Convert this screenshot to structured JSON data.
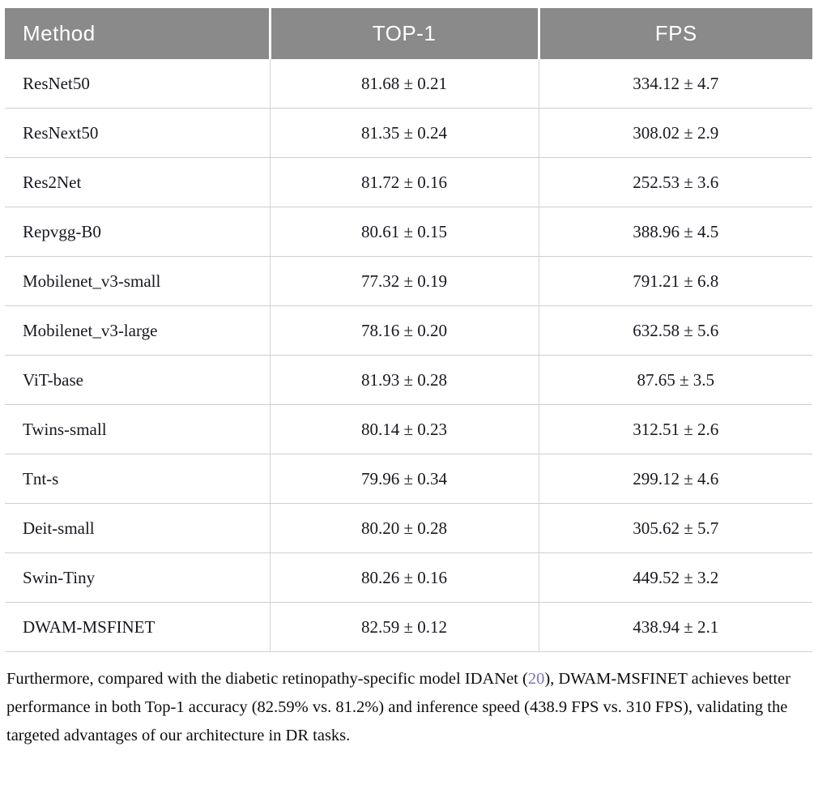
{
  "table": {
    "columns": [
      {
        "label": "Method",
        "align": "left"
      },
      {
        "label": "TOP-1",
        "align": "center"
      },
      {
        "label": "FPS",
        "align": "center"
      }
    ],
    "rows": [
      {
        "method": "ResNet50",
        "top1": "81.68 ± 0.21",
        "fps": "334.12 ± 4.7"
      },
      {
        "method": "ResNext50",
        "top1": "81.35 ± 0.24",
        "fps": "308.02 ± 2.9"
      },
      {
        "method": "Res2Net",
        "top1": "81.72 ± 0.16",
        "fps": "252.53 ± 3.6"
      },
      {
        "method": "Repvgg-B0",
        "top1": "80.61 ± 0.15",
        "fps": "388.96 ± 4.5"
      },
      {
        "method": "Mobilenet_v3-small",
        "top1": "77.32 ± 0.19",
        "fps": "791.21 ± 6.8"
      },
      {
        "method": "Mobilenet_v3-large",
        "top1": "78.16 ± 0.20",
        "fps": "632.58 ± 5.6"
      },
      {
        "method": "ViT-base",
        "top1": "81.93 ± 0.28",
        "fps": "87.65 ± 3.5"
      },
      {
        "method": "Twins-small",
        "top1": "80.14 ± 0.23",
        "fps": "312.51 ± 2.6"
      },
      {
        "method": "Tnt-s",
        "top1": "79.96 ± 0.34",
        "fps": "299.12 ± 4.6"
      },
      {
        "method": "Deit-small",
        "top1": "80.20 ± 0.28",
        "fps": "305.62 ± 5.7"
      },
      {
        "method": "Swin-Tiny",
        "top1": "80.26 ± 0.16",
        "fps": "449.52 ± 3.2"
      },
      {
        "method": "DWAM-MSFINET",
        "top1": "82.59 ± 0.12",
        "fps": "438.94 ± 2.1"
      }
    ]
  },
  "paragraph": {
    "part1": "Furthermore, compared with the diabetic retinopathy-specific model IDANet (",
    "citation": "20",
    "part2": "), DWAM-MSFINET achieves better performance in both Top-1 accuracy (82.59% vs. 81.2%) and inference speed (438.9 FPS vs. 310 FPS), validating the targeted advantages of our architecture in DR tasks."
  },
  "colors": {
    "header_bg": "#8a8a8a",
    "header_text": "#ffffff",
    "row_border": "#cfcfcf",
    "citation": "#7d74b5",
    "body_text": "#17171f"
  }
}
